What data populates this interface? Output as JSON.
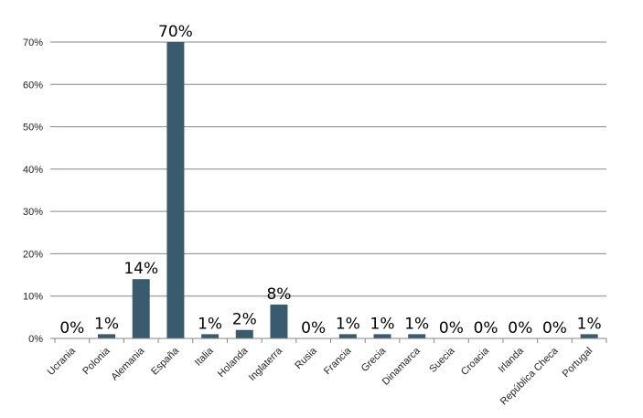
{
  "chart_data": {
    "type": "bar",
    "categories": [
      "Ucrania",
      "Polonia",
      "Alemania",
      "España",
      "Italia",
      "Holanda",
      "Inglaterra",
      "Rusia",
      "Francia",
      "Grecia",
      "Dinamarca",
      "Suecia",
      "Croacia",
      "Irlanda",
      "República Checa",
      "Portugal"
    ],
    "values": [
      0,
      1,
      14,
      70,
      1,
      2,
      8,
      0,
      1,
      1,
      1,
      0,
      0,
      0,
      0,
      1
    ],
    "data_labels": [
      "0%",
      "1%",
      "14%",
      "70%",
      "1%",
      "2%",
      "8%",
      "0%",
      "1%",
      "1%",
      "1%",
      "0%",
      "0%",
      "0%",
      "0%",
      "1%"
    ],
    "y_ticks": [
      0,
      10,
      20,
      30,
      40,
      50,
      60,
      70
    ],
    "y_tick_labels": [
      "0%",
      "10%",
      "20%",
      "30%",
      "40%",
      "50%",
      "60%",
      "70%"
    ],
    "ylim": [
      0,
      70
    ],
    "grid": true,
    "legend": "none",
    "bar_color": "#3a5a6e",
    "grid_color": "#868686"
  }
}
